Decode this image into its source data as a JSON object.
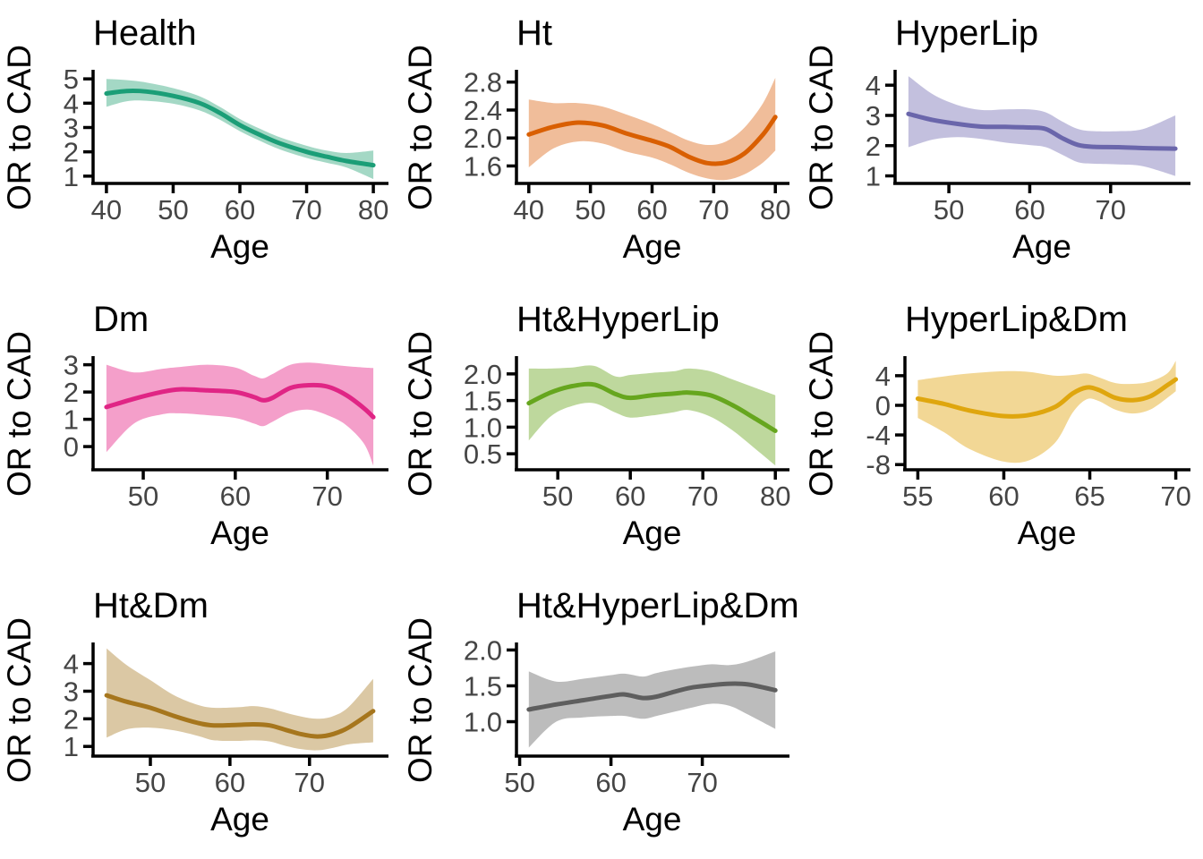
{
  "figure": {
    "background": "#ffffff",
    "xlabel": "Age",
    "ylabel": "OR to CAD"
  },
  "chart_data": [
    {
      "type": "line",
      "title": "Health",
      "xlabel": "Age",
      "ylabel": "OR to CAD",
      "line_color": "#1b9e77",
      "band_color": "#a4d8c5",
      "xlim": [
        38,
        82
      ],
      "ylim": [
        0.7,
        5.3
      ],
      "xticks": [
        40,
        50,
        60,
        70,
        80
      ],
      "xtick_labels": [
        "40",
        "50",
        "60",
        "70",
        "80"
      ],
      "yticks": [
        1,
        2,
        3,
        4,
        5
      ],
      "ytick_labels": [
        "1",
        "2",
        "3",
        "4",
        "5"
      ],
      "grid": false,
      "legend": "none",
      "series": {
        "x": [
          40,
          43,
          46,
          50,
          54,
          57,
          60,
          63,
          66,
          70,
          73,
          76,
          80
        ],
        "y": [
          4.4,
          4.5,
          4.48,
          4.3,
          4.0,
          3.6,
          3.1,
          2.7,
          2.35,
          2.0,
          1.8,
          1.62,
          1.45
        ],
        "upper": [
          5.0,
          4.95,
          4.85,
          4.62,
          4.28,
          3.85,
          3.35,
          2.95,
          2.6,
          2.25,
          2.05,
          1.95,
          2.05
        ],
        "lower": [
          3.85,
          4.08,
          4.1,
          3.98,
          3.7,
          3.32,
          2.85,
          2.45,
          2.1,
          1.75,
          1.55,
          1.35,
          0.88
        ]
      }
    },
    {
      "type": "line",
      "title": "Ht",
      "xlabel": "Age",
      "ylabel": "OR to CAD",
      "line_color": "#d95f02",
      "band_color": "#f0bd9a",
      "xlim": [
        38,
        82
      ],
      "ylim": [
        1.35,
        2.95
      ],
      "xticks": [
        40,
        50,
        60,
        70,
        80
      ],
      "xtick_labels": [
        "40",
        "50",
        "60",
        "70",
        "80"
      ],
      "yticks": [
        1.6,
        2.0,
        2.4,
        2.8
      ],
      "ytick_labels": [
        "1.6",
        "2.0",
        "2.4",
        "2.8"
      ],
      "grid": false,
      "legend": "none",
      "series": {
        "x": [
          40,
          44,
          48,
          52,
          56,
          60,
          63,
          66,
          69,
          72,
          75,
          78,
          80
        ],
        "y": [
          2.05,
          2.16,
          2.22,
          2.18,
          2.06,
          1.96,
          1.87,
          1.73,
          1.64,
          1.65,
          1.78,
          2.05,
          2.3
        ],
        "upper": [
          2.55,
          2.5,
          2.5,
          2.45,
          2.33,
          2.2,
          2.08,
          1.96,
          1.9,
          1.95,
          2.15,
          2.5,
          2.86
        ],
        "lower": [
          1.58,
          1.85,
          1.95,
          1.92,
          1.8,
          1.72,
          1.62,
          1.5,
          1.42,
          1.4,
          1.48,
          1.65,
          1.82
        ]
      }
    },
    {
      "type": "line",
      "title": "HyperLip",
      "xlabel": "Age",
      "ylabel": "OR to CAD",
      "line_color": "#6a66ab",
      "band_color": "#c3c0de",
      "xlim": [
        43.35,
        79.65
      ],
      "ylim": [
        0.75,
        4.45
      ],
      "xticks": [
        50,
        60,
        70
      ],
      "xtick_labels": [
        "50",
        "60",
        "70"
      ],
      "yticks": [
        1,
        2,
        3,
        4
      ],
      "ytick_labels": [
        "1",
        "2",
        "3",
        "4"
      ],
      "grid": false,
      "legend": "none",
      "series": {
        "x": [
          45,
          48,
          51,
          54,
          57,
          60,
          62,
          64,
          66,
          68,
          71,
          74,
          78
        ],
        "y": [
          3.05,
          2.85,
          2.72,
          2.63,
          2.62,
          2.6,
          2.55,
          2.25,
          2.02,
          1.96,
          1.95,
          1.92,
          1.9
        ],
        "upper": [
          4.3,
          3.7,
          3.35,
          3.18,
          3.2,
          3.2,
          3.1,
          2.8,
          2.55,
          2.48,
          2.48,
          2.55,
          3.0
        ],
        "lower": [
          1.95,
          2.2,
          2.28,
          2.22,
          2.1,
          2.02,
          1.95,
          1.7,
          1.45,
          1.4,
          1.38,
          1.32,
          1.0
        ]
      }
    },
    {
      "type": "line",
      "title": "Dm",
      "xlabel": "Age",
      "ylabel": "OR to CAD",
      "line_color": "#e02585",
      "band_color": "#f49fca",
      "xlim": [
        44.55,
        76.45
      ],
      "ylim": [
        -0.85,
        3.25
      ],
      "xticks": [
        50,
        60,
        70
      ],
      "xtick_labels": [
        "50",
        "60",
        "70"
      ],
      "yticks": [
        0,
        1,
        2,
        3
      ],
      "ytick_labels": [
        "0",
        "1",
        "2",
        "3"
      ],
      "grid": false,
      "legend": "none",
      "series": {
        "x": [
          46,
          49,
          52,
          54,
          57,
          60,
          62,
          63,
          64,
          66,
          68,
          70,
          72,
          74,
          75
        ],
        "y": [
          1.45,
          1.75,
          2.0,
          2.1,
          2.06,
          2.0,
          1.82,
          1.7,
          1.78,
          2.15,
          2.25,
          2.2,
          1.9,
          1.4,
          1.08
        ],
        "upper": [
          3.0,
          2.72,
          2.85,
          2.92,
          3.0,
          2.9,
          2.6,
          2.5,
          2.65,
          3.0,
          3.08,
          3.02,
          2.95,
          2.9,
          2.88
        ],
        "lower": [
          -0.2,
          0.85,
          1.18,
          1.22,
          1.15,
          1.05,
          0.85,
          0.75,
          0.9,
          1.25,
          1.35,
          1.15,
          0.8,
          0.1,
          -0.7
        ]
      }
    },
    {
      "type": "line",
      "title": "Ht&HyperLip",
      "xlabel": "Age",
      "ylabel": "OR to CAD",
      "line_color": "#66a61e",
      "band_color": "#bed89d",
      "xlim": [
        44.3,
        81.7
      ],
      "ylim": [
        0.2,
        2.3
      ],
      "xticks": [
        50,
        60,
        70,
        80
      ],
      "xtick_labels": [
        "50",
        "60",
        "70",
        "80"
      ],
      "yticks": [
        0.5,
        1.0,
        1.5,
        2.0
      ],
      "ytick_labels": [
        "0.5",
        "1.0",
        "1.5",
        "2.0"
      ],
      "grid": false,
      "legend": "none",
      "series": {
        "x": [
          46,
          49,
          52,
          55,
          58,
          60,
          63,
          66,
          68,
          71,
          74,
          77,
          80
        ],
        "y": [
          1.45,
          1.65,
          1.77,
          1.8,
          1.62,
          1.55,
          1.6,
          1.63,
          1.65,
          1.6,
          1.42,
          1.18,
          0.93
        ],
        "upper": [
          2.1,
          2.1,
          2.12,
          2.15,
          1.95,
          1.98,
          2.02,
          2.05,
          2.1,
          2.05,
          1.9,
          1.75,
          1.6
        ],
        "lower": [
          0.75,
          1.2,
          1.4,
          1.45,
          1.27,
          1.18,
          1.22,
          1.28,
          1.32,
          1.2,
          0.95,
          0.62,
          0.28
        ]
      }
    },
    {
      "type": "line",
      "title": "HyperLip&Dm",
      "xlabel": "Age",
      "ylabel": "OR to CAD",
      "line_color": "#dfa60e",
      "band_color": "#f2d795",
      "xlim": [
        54.25,
        70.75
      ],
      "ylim": [
        -8.7,
        6.4
      ],
      "xticks": [
        55,
        60,
        65,
        70
      ],
      "xtick_labels": [
        "55",
        "60",
        "65",
        "70"
      ],
      "yticks": [
        -8,
        -4,
        0,
        4
      ],
      "ytick_labels": [
        "-8",
        "-4",
        "0",
        "4"
      ],
      "grid": false,
      "legend": "none",
      "series": {
        "x": [
          55,
          56.5,
          58,
          60,
          61.5,
          63,
          64,
          64.8,
          65.5,
          66.5,
          67.5,
          68.5,
          69.5,
          70
        ],
        "y": [
          0.9,
          0.2,
          -0.7,
          -1.45,
          -1.3,
          -0.2,
          1.6,
          2.4,
          2.1,
          1.0,
          0.7,
          1.2,
          2.7,
          3.5
        ],
        "upper": [
          3.4,
          3.9,
          4.3,
          4.6,
          4.5,
          4.0,
          4.1,
          4.3,
          3.8,
          3.0,
          2.9,
          3.2,
          4.3,
          6.0
        ],
        "lower": [
          -1.7,
          -3.6,
          -5.9,
          -7.6,
          -7.4,
          -5.0,
          -1.0,
          0.8,
          0.6,
          -0.6,
          -1.1,
          -0.6,
          1.0,
          1.9
        ]
      }
    },
    {
      "type": "line",
      "title": "Ht&Dm",
      "xlabel": "Age",
      "ylabel": "OR to CAD",
      "line_color": "#a6761d",
      "band_color": "#dbc8a4",
      "xlim": [
        42.8,
        79.7
      ],
      "ylim": [
        0.65,
        4.7
      ],
      "xticks": [
        50,
        60,
        70
      ],
      "xtick_labels": [
        "50",
        "60",
        "70"
      ],
      "yticks": [
        1,
        2,
        3,
        4
      ],
      "ytick_labels": [
        "1",
        "2",
        "3",
        "4"
      ],
      "grid": false,
      "legend": "none",
      "series": {
        "x": [
          44.5,
          47,
          50,
          53,
          56,
          58,
          61,
          63,
          65,
          67,
          69,
          71,
          73,
          75,
          78
        ],
        "y": [
          2.85,
          2.62,
          2.4,
          2.1,
          1.85,
          1.76,
          1.78,
          1.8,
          1.76,
          1.6,
          1.44,
          1.36,
          1.45,
          1.7,
          2.28
        ],
        "upper": [
          4.55,
          3.95,
          3.4,
          2.85,
          2.5,
          2.4,
          2.42,
          2.46,
          2.38,
          2.22,
          2.08,
          2.0,
          2.1,
          2.45,
          3.45
        ],
        "lower": [
          1.32,
          1.62,
          1.68,
          1.58,
          1.38,
          1.22,
          1.2,
          1.22,
          1.18,
          1.02,
          0.9,
          0.86,
          0.95,
          1.08,
          1.15
        ]
      }
    },
    {
      "type": "line",
      "title": "Ht&HyperLip&Dm",
      "xlabel": "Age",
      "ylabel": "OR to CAD",
      "line_color": "#5e5e5e",
      "band_color": "#bcbcbc",
      "xlim": [
        49.65,
        79.35
      ],
      "ylim": [
        0.52,
        2.08
      ],
      "xticks": [
        50,
        60,
        70
      ],
      "xtick_labels": [
        "50",
        "60",
        "70"
      ],
      "yticks": [
        1.0,
        1.5,
        2.0
      ],
      "ytick_labels": [
        "1.0",
        "1.5",
        "2.0"
      ],
      "grid": false,
      "legend": "none",
      "series": {
        "x": [
          51,
          54,
          57,
          60,
          61.5,
          63.5,
          65,
          67,
          69,
          71,
          73,
          75,
          78
        ],
        "y": [
          1.17,
          1.24,
          1.3,
          1.36,
          1.38,
          1.33,
          1.35,
          1.42,
          1.48,
          1.51,
          1.53,
          1.52,
          1.44
        ],
        "upper": [
          1.7,
          1.56,
          1.6,
          1.65,
          1.67,
          1.63,
          1.68,
          1.73,
          1.77,
          1.8,
          1.79,
          1.84,
          1.98
        ],
        "lower": [
          0.64,
          1.0,
          1.06,
          1.08,
          1.08,
          1.04,
          1.08,
          1.14,
          1.2,
          1.25,
          1.22,
          1.1,
          0.9
        ]
      }
    }
  ]
}
